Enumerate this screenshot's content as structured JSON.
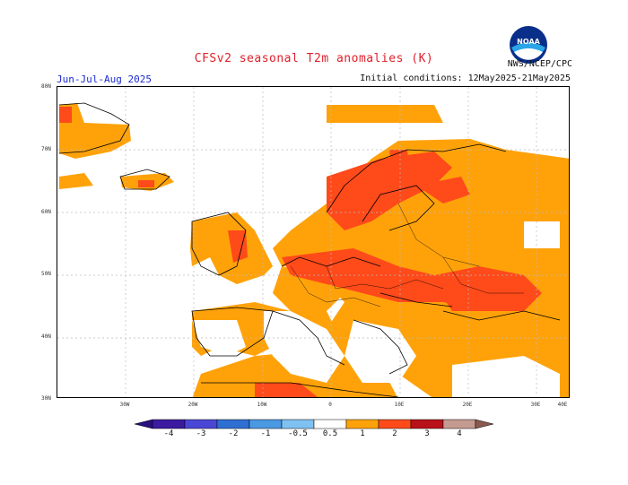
{
  "title": "CFSv2 seasonal T2m anomalies (K)",
  "season": "Jun-Jul-Aug 2025",
  "initial_conditions": "Initial conditions: 12May2025-21May2025",
  "agency": "NWS/NCEP/CPC",
  "logo_text": "NOAA",
  "lat_labels": [
    "80N",
    "70N",
    "60N",
    "50N",
    "40N",
    "30N"
  ],
  "lon_labels": [
    "30W",
    "20W",
    "10W",
    "0",
    "10E",
    "20E",
    "30E",
    "40E"
  ],
  "colorbar": {
    "labels": [
      "-4",
      "-3",
      "-2",
      "-1",
      "-0.5",
      "0.5",
      "1",
      "2",
      "3",
      "4"
    ],
    "colors": [
      "#3b1b9f",
      "#4a47d6",
      "#2f6fd2",
      "#4b98e3",
      "#7fc1f1",
      "#ffffff",
      "#ffa20a",
      "#ff4a1a",
      "#b8111a",
      "#c59a91"
    ],
    "end_low": "#2a0f80",
    "end_high": "#8a5a50"
  },
  "colors": {
    "warm_05_1": "#ffa20a",
    "warm_1_2": "#ff4a1a",
    "warm_2_3": "#b8111a",
    "land_line": "#000000",
    "grid": "#bbbbbb"
  }
}
